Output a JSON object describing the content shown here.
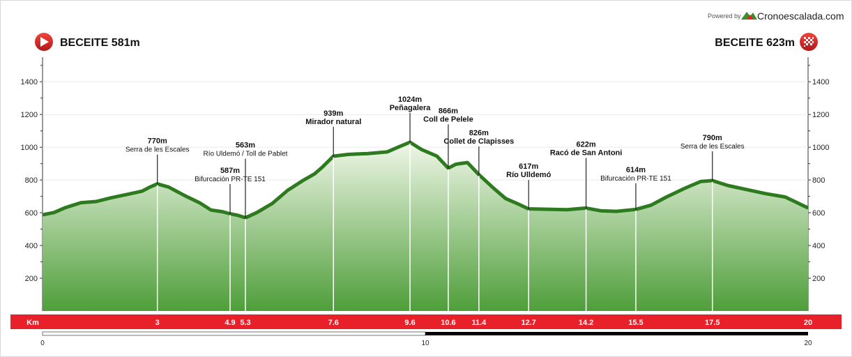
{
  "branding": {
    "powered_by": "Powered by",
    "name": "Cronoescalada.com"
  },
  "start": {
    "label": "BECEITE 581m",
    "icon": "play-icon"
  },
  "finish": {
    "label": "BECEITE 623m",
    "icon": "checkered-flag-icon"
  },
  "colors": {
    "accent": "#e8202a",
    "profile_dark": "#2e7a1f",
    "fill_top": "#e6f2dc",
    "fill_bottom": "#4f9e3a"
  },
  "chart_data": {
    "type": "area",
    "xlabel": "Km",
    "xlim": [
      0,
      20
    ],
    "ylim": [
      0,
      1550
    ],
    "yticks": [
      200,
      400,
      600,
      800,
      1000,
      1200,
      1400
    ],
    "ytick_labels": [
      "200",
      "400",
      "600",
      "800",
      "1000",
      "1200",
      "1400"
    ],
    "grid": true,
    "profile": [
      [
        0,
        581
      ],
      [
        0.3,
        595
      ],
      [
        0.6,
        625
      ],
      [
        1.0,
        655
      ],
      [
        1.4,
        662
      ],
      [
        1.8,
        685
      ],
      [
        2.2,
        705
      ],
      [
        2.6,
        725
      ],
      [
        2.8,
        750
      ],
      [
        3.0,
        770
      ],
      [
        3.3,
        750
      ],
      [
        3.7,
        700
      ],
      [
        4.1,
        655
      ],
      [
        4.4,
        610
      ],
      [
        4.7,
        600
      ],
      [
        4.9,
        587
      ],
      [
        5.1,
        578
      ],
      [
        5.3,
        563
      ],
      [
        5.6,
        595
      ],
      [
        6.0,
        650
      ],
      [
        6.4,
        730
      ],
      [
        6.8,
        790
      ],
      [
        7.1,
        830
      ],
      [
        7.3,
        870
      ],
      [
        7.6,
        939
      ],
      [
        8.0,
        950
      ],
      [
        8.5,
        955
      ],
      [
        9.0,
        965
      ],
      [
        9.3,
        995
      ],
      [
        9.6,
        1024
      ],
      [
        9.9,
        980
      ],
      [
        10.3,
        940
      ],
      [
        10.6,
        866
      ],
      [
        10.8,
        890
      ],
      [
        11.1,
        900
      ],
      [
        11.4,
        826
      ],
      [
        11.8,
        740
      ],
      [
        12.1,
        680
      ],
      [
        12.4,
        650
      ],
      [
        12.7,
        617
      ],
      [
        13.2,
        615
      ],
      [
        13.7,
        612
      ],
      [
        14.2,
        622
      ],
      [
        14.6,
        605
      ],
      [
        15.0,
        602
      ],
      [
        15.5,
        614
      ],
      [
        15.9,
        640
      ],
      [
        16.3,
        690
      ],
      [
        16.8,
        745
      ],
      [
        17.2,
        785
      ],
      [
        17.5,
        790
      ],
      [
        17.9,
        760
      ],
      [
        18.4,
        735
      ],
      [
        18.9,
        710
      ],
      [
        19.4,
        690
      ],
      [
        20.0,
        623
      ]
    ],
    "annotations": [
      {
        "km": 3,
        "altitude": "770m",
        "name": "Serra de les Escales",
        "style": "small",
        "stem_top": 955
      },
      {
        "km": 4.9,
        "altitude": "587m",
        "name": "Bifurcación PR-TE 151",
        "style": "small",
        "stem_top": 775
      },
      {
        "km": 5.3,
        "altitude": "563m",
        "name": "Río Uldemó / Toll de Pablet",
        "style": "tiny",
        "stem_top": 930
      },
      {
        "km": 7.6,
        "altitude": "939m",
        "name": "Mirador natural",
        "style": "bold",
        "stem_top": 1125
      },
      {
        "km": 9.6,
        "altitude": "1024m",
        "name": "Peñagalera",
        "style": "bold",
        "stem_top": 1210
      },
      {
        "km": 10.6,
        "altitude": "866m",
        "name": "Coll de Pelele",
        "style": "bold",
        "stem_top": 1140
      },
      {
        "km": 11.4,
        "altitude": "826m",
        "name": "Collet de Clapisses",
        "style": "bold",
        "stem_top": 1005
      },
      {
        "km": 12.7,
        "altitude": "617m",
        "name": "Río Ulldemó",
        "style": "bold",
        "stem_top": 800
      },
      {
        "km": 14.2,
        "altitude": "622m",
        "name": "Racó de San Antoni",
        "style": "bold",
        "stem_top": 935
      },
      {
        "km": 15.5,
        "altitude": "614m",
        "name": "Bifurcación PR-TE 151",
        "style": "small",
        "stem_top": 780
      },
      {
        "km": 17.5,
        "altitude": "790m",
        "name": "Serra de les Escales",
        "style": "small",
        "stem_top": 975
      }
    ],
    "km_marks": [
      3,
      4.9,
      5.3,
      7.6,
      9.6,
      10.6,
      11.4,
      12.7,
      14.2,
      15.5,
      17.5,
      20
    ],
    "km_labels": [
      "3",
      "4.9",
      "5.3",
      "7.6",
      "9.6",
      "10.6",
      "11.4",
      "12.7",
      "14.2",
      "15.5",
      "17.5",
      "20"
    ],
    "scale_labels": [
      "0",
      "10",
      "20"
    ]
  }
}
